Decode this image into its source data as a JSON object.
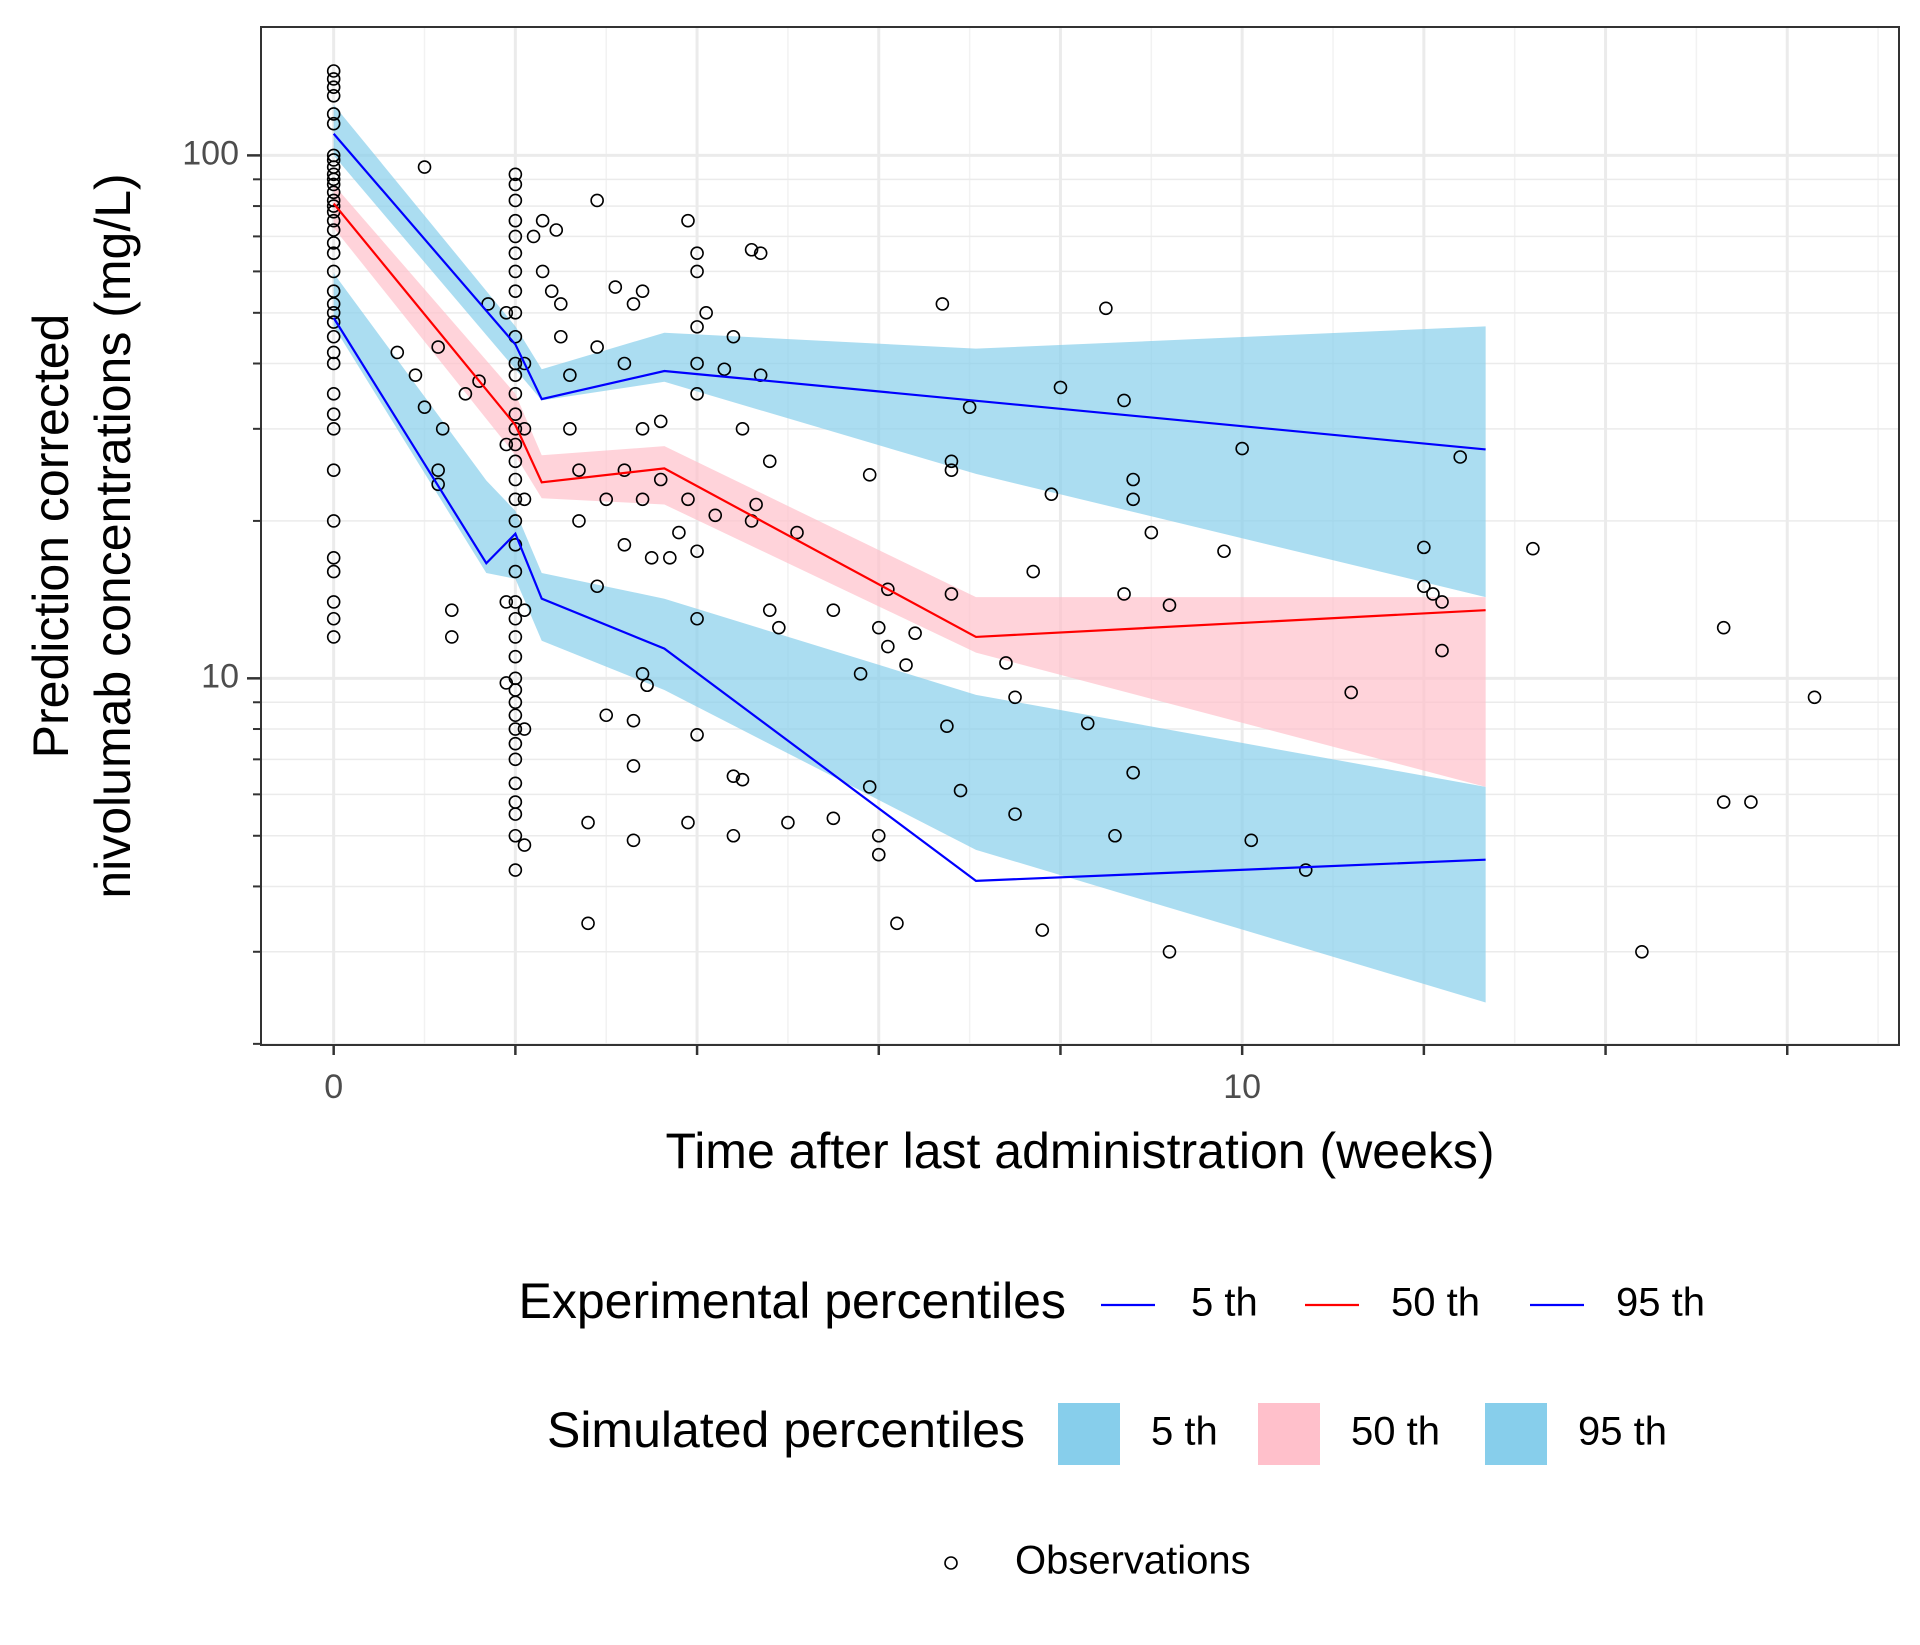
{
  "chart_data": {
    "type": "line",
    "xlabel": "Time after last administration (weeks)",
    "ylabel": [
      "Prediction corrected",
      "nivolumab concentrations (mg/L)"
    ],
    "xlim": [
      -0.8,
      17.23
    ],
    "ylim": [
      1.99,
      176
    ],
    "log_y": true,
    "grid": true,
    "xticks": [
      0,
      10
    ],
    "xticks_unlabeled": [
      2,
      4,
      6,
      8,
      12,
      14,
      16
    ],
    "x_minor_grid": [
      1,
      3,
      5,
      7,
      9,
      11,
      13,
      15,
      17
    ],
    "yticks": [
      10,
      100
    ],
    "y_minor_ticks": [
      2,
      3,
      4,
      5,
      6,
      7,
      8,
      9,
      20,
      30,
      40,
      50,
      60,
      70,
      80,
      90
    ],
    "line_legend_title": "Experimental percentiles",
    "series": [
      {
        "name": "5 th",
        "color": "#0000ff",
        "x": [
          0,
          1.68,
          2.0,
          2.29,
          3.64,
          7.07,
          12.68
        ],
        "values": [
          48.9,
          16.6,
          18.9,
          14.2,
          11.4,
          4.1,
          4.5
        ]
      },
      {
        "name": "50 th",
        "color": "#ff0000",
        "x": [
          0,
          2.0,
          2.29,
          3.64,
          7.07,
          12.68
        ],
        "values": [
          80.9,
          30.5,
          23.7,
          25.2,
          12.0,
          13.5
        ]
      },
      {
        "name": "95 th",
        "color": "#0000ff",
        "x": [
          0,
          2.0,
          2.29,
          3.64,
          12.68
        ],
        "values": [
          110,
          43.5,
          34.2,
          38.7,
          27.4
        ]
      }
    ],
    "band_legend_title": "Simulated percentiles",
    "band_opacity": 0.7,
    "bands": [
      {
        "name": "5 th",
        "color": "#87ceeb",
        "x": [
          0,
          1.68,
          2.0,
          2.29,
          3.64,
          7.07,
          12.68
        ],
        "lower": [
          47.1,
          15.9,
          15.5,
          11.8,
          9.5,
          4.7,
          2.4
        ],
        "upper": [
          59.5,
          23.9,
          20.9,
          15.9,
          14.2,
          9.3,
          6.2
        ]
      },
      {
        "name": "50 th",
        "color": "#ffc0cb",
        "x": [
          0,
          2.0,
          2.29,
          3.64,
          7.07,
          12.68
        ],
        "lower": [
          72.7,
          26.7,
          22.1,
          21.5,
          11.2,
          6.2
        ],
        "upper": [
          87.9,
          35,
          26.7,
          27.8,
          14.3,
          14.3
        ]
      },
      {
        "name": "95 th",
        "color": "#87ceeb",
        "x": [
          0,
          2.0,
          2.29,
          3.64,
          7.07,
          12.68
        ],
        "lower": [
          100,
          39,
          34,
          36.9,
          24.6,
          14.3
        ],
        "upper": [
          125,
          47.1,
          39,
          45.8,
          42.7,
          47.1
        ]
      }
    ],
    "scatter": {
      "name": "Observations",
      "color": "#000000",
      "x": [
        0,
        0,
        0,
        0,
        0,
        0,
        0,
        0,
        0,
        0,
        0,
        0,
        0,
        0,
        0,
        0,
        0,
        0,
        0,
        0,
        0,
        0,
        0,
        0,
        0,
        0,
        0,
        0,
        0,
        0,
        0,
        0,
        0,
        0,
        0,
        0,
        0,
        0,
        1.0,
        0.7,
        0.9,
        1.0,
        1.15,
        1.2,
        1.15,
        1.15,
        1.3,
        1.3,
        1.45,
        1.6,
        1.7,
        2,
        2,
        2,
        2,
        2,
        2,
        2,
        2,
        2,
        2,
        2,
        2,
        2,
        2,
        2,
        2,
        2,
        2,
        2,
        2,
        2,
        2,
        2,
        2,
        2,
        2,
        2,
        2,
        2,
        2,
        2,
        2,
        2,
        2,
        2,
        2,
        2,
        2,
        1.9,
        1.9,
        1.9,
        1.9,
        2.1,
        2.1,
        2.1,
        2.1,
        2.1,
        2.1,
        2.2,
        2.3,
        2.3,
        2.4,
        2.45,
        2.5,
        2.5,
        2.6,
        2.6,
        2.7,
        2.7,
        2.8,
        2.8,
        2.9,
        2.9,
        2.9,
        3.0,
        3.0,
        3.1,
        3.2,
        3.2,
        3.2,
        3.3,
        3.3,
        3.3,
        3.3,
        3.4,
        3.4,
        3.4,
        3.4,
        3.45,
        3.5,
        3.6,
        3.6,
        3.7,
        3.8,
        3.9,
        3.9,
        3.9,
        4.0,
        4.0,
        4.0,
        4.0,
        4.0,
        4.0,
        4.0,
        4.0,
        4.1,
        4.2,
        4.3,
        4.4,
        4.4,
        4.4,
        4.5,
        4.5,
        4.6,
        4.6,
        4.65,
        4.7,
        4.7,
        4.8,
        4.8,
        4.9,
        5.0,
        5.1,
        5.5,
        5.5,
        5.8,
        5.9,
        5.9,
        6.0,
        6.0,
        6.0,
        6.1,
        6.1,
        6.2,
        6.3,
        6.4,
        6.7,
        6.75,
        6.8,
        6.8,
        6.8,
        6.9,
        7.0,
        7.4,
        7.5,
        7.5,
        7.7,
        7.8,
        7.9,
        8.0,
        8.3,
        8.5,
        8.6,
        8.7,
        8.7,
        8.8,
        8.8,
        8.8,
        9.0,
        9.2,
        9.2,
        10.0,
        9.8,
        10.1,
        10.7,
        11.2,
        12.0,
        12.0,
        12.1,
        12.2,
        12.2,
        12.4,
        13.2,
        14.4,
        15.3,
        15.3,
        15.6,
        16.3
      ],
      "values": [
        145,
        140,
        135,
        130,
        120,
        115,
        100,
        98,
        95,
        92,
        90,
        88,
        85,
        82,
        80,
        78,
        75,
        72,
        68,
        65,
        60,
        55,
        52,
        50,
        48,
        45,
        42,
        40,
        35,
        32,
        30,
        25,
        20,
        17,
        16,
        14,
        13,
        12,
        95,
        42,
        38,
        33,
        43,
        30,
        25,
        23.5,
        13.5,
        12,
        35,
        37,
        52,
        92,
        88,
        82,
        75,
        70,
        65,
        60,
        55,
        50,
        45,
        40,
        38,
        35,
        32,
        30,
        28,
        26,
        24,
        22,
        20,
        18,
        16,
        14,
        13,
        12,
        11,
        10,
        9.5,
        9,
        8.5,
        8,
        7.5,
        7,
        6.3,
        5.8,
        5.5,
        5,
        4.3,
        50,
        28,
        14,
        9.8,
        40,
        30,
        22,
        13.5,
        8,
        4.8,
        70,
        60,
        75,
        55,
        72,
        52,
        45,
        38,
        30,
        25,
        20,
        5.3,
        3.4,
        15,
        43,
        82,
        22,
        8.5,
        56,
        40,
        25,
        18,
        52,
        8.3,
        4.9,
        6.8,
        55,
        30,
        22,
        10.2,
        9.7,
        17,
        31,
        24,
        17,
        19,
        22,
        5.3,
        75,
        13,
        35,
        40,
        47,
        60,
        65,
        17.5,
        7.8,
        50,
        20.5,
        39,
        45,
        5,
        6.5,
        6.4,
        30,
        20,
        66,
        21.5,
        38,
        65,
        26,
        13.5,
        12.5,
        5.3,
        19,
        13.5,
        5.4,
        10.2,
        6.2,
        24.5,
        5,
        12.5,
        4.6,
        11.5,
        14.8,
        3.4,
        10.6,
        12.2,
        52,
        8.1,
        14.5,
        26,
        25,
        6.1,
        33,
        10.7,
        9.2,
        5.5,
        16,
        3.3,
        22.5,
        36,
        8.2,
        51,
        5,
        34,
        14.5,
        6.6,
        24,
        22,
        19,
        3,
        13.8,
        27.5,
        17.5,
        4.9,
        4.3,
        9.4,
        17.8,
        15,
        14.5,
        14,
        11.3,
        26.5,
        17.7,
        3,
        12.5,
        5.8,
        5.8,
        9.2
      ]
    }
  }
}
